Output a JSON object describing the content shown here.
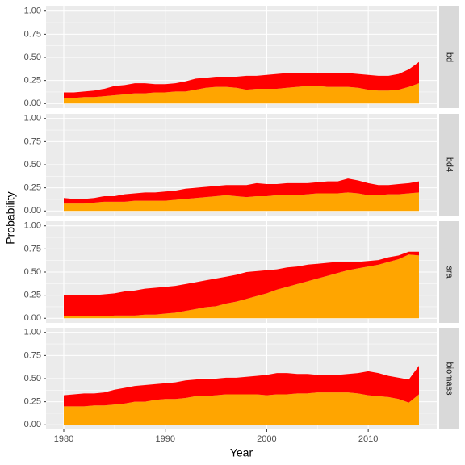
{
  "xlabel": "Year",
  "ylabel": "Probability",
  "chart_data": [
    {
      "type": "area",
      "facet": "bd",
      "x": [
        1980,
        1981,
        1982,
        1983,
        1984,
        1985,
        1986,
        1987,
        1988,
        1989,
        1990,
        1991,
        1992,
        1993,
        1994,
        1995,
        1996,
        1997,
        1998,
        1999,
        2000,
        2001,
        2002,
        2003,
        2004,
        2005,
        2006,
        2007,
        2008,
        2009,
        2010,
        2011,
        2012,
        2013,
        2014,
        2015
      ],
      "series": [
        {
          "color": "#ffa500",
          "values": [
            0.06,
            0.06,
            0.07,
            0.07,
            0.08,
            0.09,
            0.1,
            0.11,
            0.11,
            0.12,
            0.12,
            0.13,
            0.13,
            0.15,
            0.17,
            0.18,
            0.18,
            0.17,
            0.15,
            0.16,
            0.16,
            0.16,
            0.17,
            0.18,
            0.19,
            0.19,
            0.18,
            0.18,
            0.18,
            0.17,
            0.15,
            0.14,
            0.14,
            0.15,
            0.18,
            0.22
          ]
        },
        {
          "color": "#ff0000",
          "values": [
            0.06,
            0.06,
            0.06,
            0.07,
            0.08,
            0.1,
            0.1,
            0.11,
            0.11,
            0.09,
            0.09,
            0.09,
            0.11,
            0.12,
            0.11,
            0.11,
            0.11,
            0.12,
            0.15,
            0.14,
            0.15,
            0.16,
            0.16,
            0.15,
            0.14,
            0.14,
            0.15,
            0.15,
            0.15,
            0.15,
            0.16,
            0.16,
            0.16,
            0.17,
            0.19,
            0.23
          ]
        }
      ],
      "xlim": [
        1978.25,
        2016.75
      ],
      "xticks": [
        1980,
        1990,
        2000,
        2010
      ],
      "ylim": [
        -0.05,
        1.05
      ],
      "yticks": [
        {
          "value": 0,
          "label": "0.00"
        },
        {
          "value": 0.25,
          "label": "0.25"
        },
        {
          "value": 0.5,
          "label": "0.50"
        },
        {
          "value": 0.75,
          "label": "0.75"
        },
        {
          "value": 1,
          "label": "1.00"
        }
      ]
    },
    {
      "type": "area",
      "facet": "bd4",
      "x": [
        1980,
        1981,
        1982,
        1983,
        1984,
        1985,
        1986,
        1987,
        1988,
        1989,
        1990,
        1991,
        1992,
        1993,
        1994,
        1995,
        1996,
        1997,
        1998,
        1999,
        2000,
        2001,
        2002,
        2003,
        2004,
        2005,
        2006,
        2007,
        2008,
        2009,
        2010,
        2011,
        2012,
        2013,
        2014,
        2015
      ],
      "series": [
        {
          "color": "#ffa500",
          "values": [
            0.08,
            0.08,
            0.08,
            0.09,
            0.1,
            0.1,
            0.1,
            0.11,
            0.11,
            0.11,
            0.11,
            0.12,
            0.13,
            0.14,
            0.15,
            0.16,
            0.17,
            0.16,
            0.15,
            0.16,
            0.16,
            0.17,
            0.17,
            0.17,
            0.18,
            0.19,
            0.19,
            0.19,
            0.2,
            0.19,
            0.17,
            0.17,
            0.18,
            0.18,
            0.19,
            0.2
          ]
        },
        {
          "color": "#ff0000",
          "values": [
            0.06,
            0.05,
            0.05,
            0.05,
            0.06,
            0.06,
            0.08,
            0.08,
            0.09,
            0.09,
            0.1,
            0.1,
            0.11,
            0.11,
            0.11,
            0.11,
            0.11,
            0.12,
            0.13,
            0.14,
            0.13,
            0.12,
            0.13,
            0.13,
            0.12,
            0.12,
            0.13,
            0.13,
            0.15,
            0.14,
            0.13,
            0.11,
            0.1,
            0.11,
            0.11,
            0.12
          ]
        }
      ],
      "xlim": [
        1978.25,
        2016.75
      ],
      "xticks": [
        1980,
        1990,
        2000,
        2010
      ],
      "ylim": [
        -0.05,
        1.05
      ],
      "yticks": [
        {
          "value": 0,
          "label": "0.00"
        },
        {
          "value": 0.25,
          "label": "0.25"
        },
        {
          "value": 0.5,
          "label": "0.50"
        },
        {
          "value": 0.75,
          "label": "0.75"
        },
        {
          "value": 1,
          "label": "1.00"
        }
      ]
    },
    {
      "type": "area",
      "facet": "sra",
      "x": [
        1980,
        1981,
        1982,
        1983,
        1984,
        1985,
        1986,
        1987,
        1988,
        1989,
        1990,
        1991,
        1992,
        1993,
        1994,
        1995,
        1996,
        1997,
        1998,
        1999,
        2000,
        2001,
        2002,
        2003,
        2004,
        2005,
        2006,
        2007,
        2008,
        2009,
        2010,
        2011,
        2012,
        2013,
        2014,
        2015
      ],
      "series": [
        {
          "color": "#ffa500",
          "values": [
            0.02,
            0.02,
            0.02,
            0.02,
            0.02,
            0.03,
            0.03,
            0.03,
            0.04,
            0.04,
            0.05,
            0.06,
            0.08,
            0.1,
            0.12,
            0.13,
            0.16,
            0.18,
            0.21,
            0.24,
            0.27,
            0.31,
            0.34,
            0.37,
            0.4,
            0.43,
            0.46,
            0.49,
            0.52,
            0.54,
            0.56,
            0.58,
            0.61,
            0.64,
            0.69,
            0.68
          ]
        },
        {
          "color": "#ff0000",
          "values": [
            0.23,
            0.23,
            0.23,
            0.23,
            0.24,
            0.24,
            0.26,
            0.27,
            0.28,
            0.29,
            0.29,
            0.29,
            0.29,
            0.29,
            0.29,
            0.3,
            0.29,
            0.29,
            0.29,
            0.27,
            0.25,
            0.22,
            0.21,
            0.19,
            0.18,
            0.16,
            0.14,
            0.12,
            0.09,
            0.07,
            0.06,
            0.05,
            0.05,
            0.04,
            0.03,
            0.04
          ]
        }
      ],
      "xlim": [
        1978.25,
        2016.75
      ],
      "xticks": [
        1980,
        1990,
        2000,
        2010
      ],
      "ylim": [
        -0.05,
        1.05
      ],
      "yticks": [
        {
          "value": 0,
          "label": "0.00"
        },
        {
          "value": 0.25,
          "label": "0.25"
        },
        {
          "value": 0.5,
          "label": "0.50"
        },
        {
          "value": 0.75,
          "label": "0.75"
        },
        {
          "value": 1,
          "label": "1.00"
        }
      ]
    },
    {
      "type": "area",
      "facet": "biomass",
      "x": [
        1980,
        1981,
        1982,
        1983,
        1984,
        1985,
        1986,
        1987,
        1988,
        1989,
        1990,
        1991,
        1992,
        1993,
        1994,
        1995,
        1996,
        1997,
        1998,
        1999,
        2000,
        2001,
        2002,
        2003,
        2004,
        2005,
        2006,
        2007,
        2008,
        2009,
        2010,
        2011,
        2012,
        2013,
        2014,
        2015
      ],
      "series": [
        {
          "color": "#ffa500",
          "values": [
            0.2,
            0.2,
            0.2,
            0.21,
            0.21,
            0.22,
            0.23,
            0.25,
            0.25,
            0.27,
            0.28,
            0.28,
            0.29,
            0.31,
            0.31,
            0.32,
            0.33,
            0.33,
            0.33,
            0.33,
            0.32,
            0.33,
            0.33,
            0.34,
            0.34,
            0.35,
            0.35,
            0.35,
            0.35,
            0.34,
            0.32,
            0.31,
            0.3,
            0.28,
            0.24,
            0.33
          ]
        },
        {
          "color": "#ff0000",
          "values": [
            0.12,
            0.13,
            0.14,
            0.13,
            0.14,
            0.16,
            0.17,
            0.17,
            0.18,
            0.17,
            0.17,
            0.18,
            0.19,
            0.18,
            0.19,
            0.18,
            0.18,
            0.18,
            0.19,
            0.2,
            0.22,
            0.23,
            0.23,
            0.21,
            0.21,
            0.19,
            0.19,
            0.19,
            0.2,
            0.22,
            0.26,
            0.25,
            0.23,
            0.23,
            0.25,
            0.31
          ]
        }
      ],
      "xlim": [
        1978.25,
        2016.75
      ],
      "xticks": [
        1980,
        1990,
        2000,
        2010
      ],
      "ylim": [
        -0.05,
        1.05
      ],
      "yticks": [
        {
          "value": 0,
          "label": "0.00"
        },
        {
          "value": 0.25,
          "label": "0.25"
        },
        {
          "value": 0.5,
          "label": "0.50"
        },
        {
          "value": 0.75,
          "label": "0.75"
        },
        {
          "value": 1,
          "label": "1.00"
        }
      ]
    }
  ]
}
